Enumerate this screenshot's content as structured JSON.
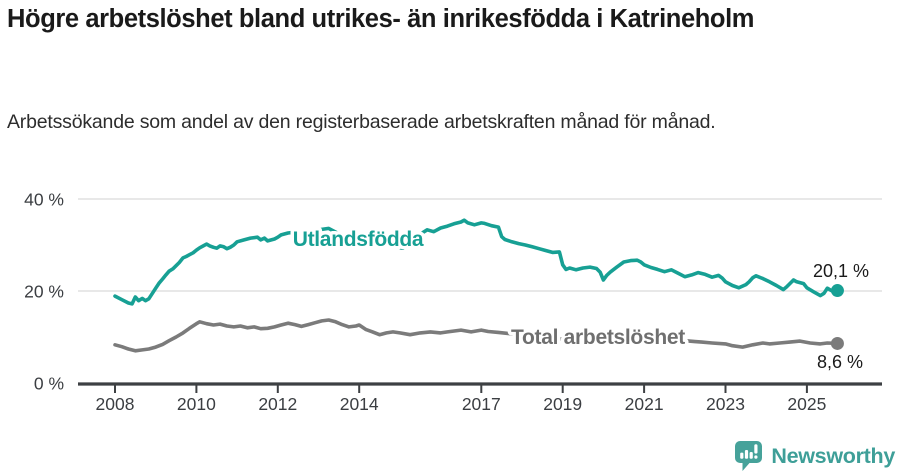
{
  "header": {
    "title": "Högre arbetslöshet bland utrikes- än inrikesfödda i Katrineholm",
    "subtitle": "Arbetssökande som andel av den registerbaserade arbetskraften månad för månad."
  },
  "footer": {
    "brand": "Newsworthy",
    "logo_icon": "speech-bubble-bar-chart-icon"
  },
  "colors": {
    "series_utlandsfodda": "#17a094",
    "series_total": "#7b7b7b",
    "series_total_label": "#6f6f6f",
    "axis": "#3d4043",
    "tick_text": "#3b3e42",
    "grid": "#d9d9d9",
    "value_text": "#1a1a1a",
    "brand": "#3e9f98",
    "background": "#ffffff"
  },
  "chart_data": {
    "type": "line",
    "title": "Högre arbetslöshet bland utrikes- än inrikesfödda i Katrineholm",
    "subtitle": "Arbetssökande som andel av den registerbaserade arbetskraften månad för månad.",
    "xlabel": "",
    "ylabel": "",
    "unit": "%",
    "grid": "horizontal",
    "legend": "inline-labels",
    "x_range": [
      2008.0,
      2025.75
    ],
    "y_range": [
      0,
      44
    ],
    "x_ticks": [
      2008,
      2010,
      2012,
      2014,
      2017,
      2019,
      2021,
      2023,
      2025
    ],
    "y_ticks": [
      {
        "value": 0,
        "label": "0 %"
      },
      {
        "value": 20,
        "label": "20 %"
      },
      {
        "value": 40,
        "label": "40 %"
      }
    ],
    "series": [
      {
        "name": "Utlandsfödda",
        "color_key": "series_utlandsfodda",
        "end_value": 20.1,
        "end_label": "20,1 %",
        "points": [
          [
            2008.0,
            18.9
          ],
          [
            2008.17,
            18.1
          ],
          [
            2008.33,
            17.4
          ],
          [
            2008.42,
            17.2
          ],
          [
            2008.5,
            18.7
          ],
          [
            2008.58,
            17.9
          ],
          [
            2008.67,
            18.4
          ],
          [
            2008.75,
            17.9
          ],
          [
            2008.83,
            18.3
          ],
          [
            2008.92,
            19.5
          ],
          [
            2009.0,
            20.6
          ],
          [
            2009.08,
            21.7
          ],
          [
            2009.17,
            22.6
          ],
          [
            2009.25,
            23.5
          ],
          [
            2009.33,
            24.3
          ],
          [
            2009.42,
            24.8
          ],
          [
            2009.5,
            25.5
          ],
          [
            2009.58,
            26.2
          ],
          [
            2009.67,
            27.2
          ],
          [
            2009.75,
            27.5
          ],
          [
            2009.83,
            27.9
          ],
          [
            2009.92,
            28.3
          ],
          [
            2010.0,
            28.9
          ],
          [
            2010.08,
            29.4
          ],
          [
            2010.17,
            29.8
          ],
          [
            2010.25,
            30.2
          ],
          [
            2010.33,
            29.8
          ],
          [
            2010.42,
            29.5
          ],
          [
            2010.5,
            29.3
          ],
          [
            2010.58,
            29.8
          ],
          [
            2010.67,
            29.6
          ],
          [
            2010.75,
            29.2
          ],
          [
            2010.83,
            29.5
          ],
          [
            2010.92,
            30.0
          ],
          [
            2011.0,
            30.7
          ],
          [
            2011.17,
            31.1
          ],
          [
            2011.33,
            31.5
          ],
          [
            2011.5,
            31.7
          ],
          [
            2011.58,
            31.1
          ],
          [
            2011.67,
            31.5
          ],
          [
            2011.75,
            30.9
          ],
          [
            2011.92,
            31.3
          ],
          [
            2012.0,
            31.7
          ],
          [
            2012.08,
            32.2
          ],
          [
            2012.25,
            32.6
          ],
          [
            2012.42,
            32.8
          ],
          [
            2012.58,
            32.5
          ],
          [
            2012.75,
            32.8
          ],
          [
            2012.92,
            33.1
          ],
          [
            2013.08,
            33.4
          ],
          [
            2013.25,
            33.6
          ],
          [
            2013.42,
            32.8
          ],
          [
            2013.58,
            32.0
          ],
          [
            2013.75,
            30.8
          ],
          [
            2013.92,
            30.2
          ],
          [
            2014.08,
            29.8
          ],
          [
            2014.25,
            29.6
          ],
          [
            2014.42,
            30.2
          ],
          [
            2014.58,
            30.6
          ],
          [
            2014.75,
            30.0
          ],
          [
            2014.92,
            29.5
          ],
          [
            2015.08,
            29.3
          ],
          [
            2015.25,
            30.5
          ],
          [
            2015.42,
            31.8
          ],
          [
            2015.58,
            32.8
          ],
          [
            2015.67,
            33.3
          ],
          [
            2015.83,
            32.9
          ],
          [
            2016.0,
            33.7
          ],
          [
            2016.17,
            34.1
          ],
          [
            2016.33,
            34.6
          ],
          [
            2016.5,
            35.0
          ],
          [
            2016.58,
            35.4
          ],
          [
            2016.67,
            34.8
          ],
          [
            2016.83,
            34.4
          ],
          [
            2017.0,
            34.8
          ],
          [
            2017.08,
            34.7
          ],
          [
            2017.25,
            34.2
          ],
          [
            2017.42,
            33.9
          ],
          [
            2017.5,
            31.8
          ],
          [
            2017.58,
            31.2
          ],
          [
            2017.75,
            30.7
          ],
          [
            2017.92,
            30.3
          ],
          [
            2018.08,
            30.0
          ],
          [
            2018.25,
            29.6
          ],
          [
            2018.42,
            29.2
          ],
          [
            2018.58,
            28.8
          ],
          [
            2018.75,
            28.4
          ],
          [
            2018.92,
            28.5
          ],
          [
            2019.0,
            25.7
          ],
          [
            2019.08,
            24.7
          ],
          [
            2019.17,
            25.0
          ],
          [
            2019.33,
            24.6
          ],
          [
            2019.5,
            25.0
          ],
          [
            2019.67,
            25.2
          ],
          [
            2019.83,
            24.9
          ],
          [
            2019.92,
            24.1
          ],
          [
            2020.0,
            22.4
          ],
          [
            2020.08,
            23.4
          ],
          [
            2020.17,
            24.1
          ],
          [
            2020.33,
            25.2
          ],
          [
            2020.5,
            26.3
          ],
          [
            2020.67,
            26.6
          ],
          [
            2020.83,
            26.7
          ],
          [
            2020.92,
            26.3
          ],
          [
            2021.0,
            25.7
          ],
          [
            2021.17,
            25.1
          ],
          [
            2021.33,
            24.7
          ],
          [
            2021.5,
            24.2
          ],
          [
            2021.67,
            24.6
          ],
          [
            2021.83,
            23.9
          ],
          [
            2022.0,
            23.1
          ],
          [
            2022.17,
            23.5
          ],
          [
            2022.33,
            24.0
          ],
          [
            2022.5,
            23.6
          ],
          [
            2022.67,
            23.0
          ],
          [
            2022.83,
            23.4
          ],
          [
            2022.92,
            22.8
          ],
          [
            2023.0,
            22.0
          ],
          [
            2023.17,
            21.2
          ],
          [
            2023.33,
            20.7
          ],
          [
            2023.5,
            21.4
          ],
          [
            2023.58,
            22.0
          ],
          [
            2023.67,
            22.9
          ],
          [
            2023.75,
            23.3
          ],
          [
            2023.92,
            22.7
          ],
          [
            2024.08,
            22.0
          ],
          [
            2024.25,
            21.2
          ],
          [
            2024.42,
            20.3
          ],
          [
            2024.5,
            20.9
          ],
          [
            2024.67,
            22.4
          ],
          [
            2024.75,
            22.0
          ],
          [
            2024.92,
            21.6
          ],
          [
            2025.0,
            20.7
          ],
          [
            2025.17,
            19.8
          ],
          [
            2025.33,
            19.0
          ],
          [
            2025.42,
            19.5
          ],
          [
            2025.5,
            20.6
          ],
          [
            2025.58,
            20.2
          ],
          [
            2025.67,
            19.8
          ],
          [
            2025.75,
            20.1
          ]
        ]
      },
      {
        "name": "Total arbetslöshet",
        "color_key": "series_total",
        "end_value": 8.6,
        "end_label": "8,6 %",
        "points": [
          [
            2008.0,
            8.3
          ],
          [
            2008.17,
            7.9
          ],
          [
            2008.33,
            7.4
          ],
          [
            2008.5,
            7.0
          ],
          [
            2008.67,
            7.2
          ],
          [
            2008.83,
            7.4
          ],
          [
            2009.0,
            7.8
          ],
          [
            2009.17,
            8.4
          ],
          [
            2009.33,
            9.2
          ],
          [
            2009.5,
            10.0
          ],
          [
            2009.67,
            10.9
          ],
          [
            2009.83,
            11.9
          ],
          [
            2010.0,
            12.9
          ],
          [
            2010.08,
            13.3
          ],
          [
            2010.25,
            12.9
          ],
          [
            2010.42,
            12.6
          ],
          [
            2010.58,
            12.8
          ],
          [
            2010.75,
            12.4
          ],
          [
            2010.92,
            12.2
          ],
          [
            2011.08,
            12.4
          ],
          [
            2011.25,
            12.0
          ],
          [
            2011.42,
            12.2
          ],
          [
            2011.58,
            11.8
          ],
          [
            2011.75,
            11.9
          ],
          [
            2011.92,
            12.2
          ],
          [
            2012.08,
            12.6
          ],
          [
            2012.25,
            13.0
          ],
          [
            2012.42,
            12.7
          ],
          [
            2012.58,
            12.3
          ],
          [
            2012.75,
            12.7
          ],
          [
            2012.92,
            13.1
          ],
          [
            2013.08,
            13.5
          ],
          [
            2013.25,
            13.7
          ],
          [
            2013.42,
            13.3
          ],
          [
            2013.58,
            12.7
          ],
          [
            2013.75,
            12.2
          ],
          [
            2013.92,
            12.4
          ],
          [
            2014.0,
            12.6
          ],
          [
            2014.17,
            11.6
          ],
          [
            2014.33,
            11.1
          ],
          [
            2014.5,
            10.5
          ],
          [
            2014.67,
            10.9
          ],
          [
            2014.83,
            11.1
          ],
          [
            2015.0,
            10.9
          ],
          [
            2015.25,
            10.5
          ],
          [
            2015.5,
            10.9
          ],
          [
            2015.75,
            11.1
          ],
          [
            2016.0,
            10.9
          ],
          [
            2016.17,
            11.1
          ],
          [
            2016.5,
            11.5
          ],
          [
            2016.75,
            11.1
          ],
          [
            2017.0,
            11.5
          ],
          [
            2017.17,
            11.2
          ],
          [
            2017.42,
            11.0
          ],
          [
            2017.75,
            10.7
          ],
          [
            2018.0,
            10.4
          ],
          [
            2018.33,
            10.2
          ],
          [
            2018.67,
            10.0
          ],
          [
            2019.0,
            9.5
          ],
          [
            2019.33,
            9.3
          ],
          [
            2019.67,
            9.2
          ],
          [
            2020.0,
            9.4
          ],
          [
            2020.25,
            10.3
          ],
          [
            2020.5,
            10.6
          ],
          [
            2020.83,
            10.4
          ],
          [
            2021.0,
            10.2
          ],
          [
            2021.33,
            9.8
          ],
          [
            2021.67,
            9.5
          ],
          [
            2022.0,
            9.2
          ],
          [
            2022.25,
            9.0
          ],
          [
            2022.42,
            8.9
          ],
          [
            2022.67,
            8.7
          ],
          [
            2023.0,
            8.5
          ],
          [
            2023.17,
            8.1
          ],
          [
            2023.42,
            7.8
          ],
          [
            2023.67,
            8.3
          ],
          [
            2023.92,
            8.7
          ],
          [
            2024.08,
            8.5
          ],
          [
            2024.33,
            8.7
          ],
          [
            2024.58,
            8.9
          ],
          [
            2024.83,
            9.1
          ],
          [
            2025.08,
            8.7
          ],
          [
            2025.33,
            8.5
          ],
          [
            2025.5,
            8.7
          ],
          [
            2025.75,
            8.6
          ]
        ]
      }
    ]
  }
}
